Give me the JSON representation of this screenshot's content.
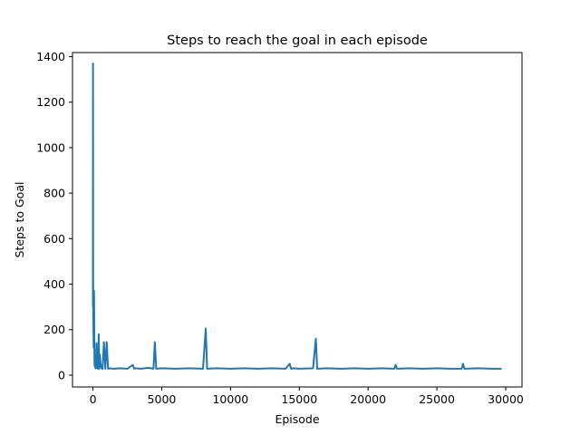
{
  "chart_data": {
    "type": "line",
    "title": "Steps to reach the goal in each episode",
    "xlabel": "Episode",
    "ylabel": "Steps to Goal",
    "xlim": [
      -1485,
      31185
    ],
    "ylim": [
      -52,
      1418
    ],
    "xticks": [
      0,
      5000,
      10000,
      15000,
      20000,
      25000,
      30000
    ],
    "xtick_labels": [
      "0",
      "5000",
      "10000",
      "15000",
      "20000",
      "25000",
      "30000"
    ],
    "yticks": [
      0,
      200,
      400,
      600,
      800,
      1000,
      1200,
      1400
    ],
    "ytick_labels": [
      "0",
      "200",
      "400",
      "600",
      "800",
      "1000",
      "1200",
      "1400"
    ],
    "grid": false,
    "series": [
      {
        "color": "#1f77b4",
        "x": [
          0,
          5,
          10,
          15,
          20,
          30,
          40,
          50,
          60,
          80,
          100,
          110,
          120,
          150,
          180,
          200,
          230,
          260,
          300,
          340,
          380,
          420,
          460,
          500,
          560,
          620,
          700,
          800,
          900,
          1000,
          1100,
          1200,
          1500,
          2000,
          2500,
          2900,
          3000,
          3100,
          3500,
          4000,
          4400,
          4500,
          4600,
          5000,
          6000,
          7000,
          8000,
          8200,
          8300,
          9000,
          10000,
          11000,
          12000,
          13000,
          14000,
          14300,
          14400,
          14600,
          15000,
          16000,
          16200,
          16300,
          17000,
          18000,
          19000,
          20000,
          21000,
          21900,
          22000,
          22100,
          23000,
          24000,
          25000,
          26000,
          26800,
          26900,
          27000,
          28000,
          29000,
          29700
        ],
        "y": [
          300,
          1370,
          900,
          450,
          300,
          250,
          200,
          130,
          120,
          370,
          180,
          70,
          40,
          90,
          30,
          60,
          35,
          140,
          30,
          60,
          28,
          180,
          28,
          90,
          50,
          30,
          28,
          145,
          28,
          145,
          28,
          30,
          28,
          30,
          28,
          45,
          28,
          30,
          28,
          32,
          28,
          145,
          28,
          30,
          28,
          30,
          28,
          205,
          28,
          30,
          28,
          30,
          28,
          30,
          28,
          50,
          28,
          30,
          28,
          30,
          160,
          28,
          30,
          28,
          30,
          28,
          30,
          28,
          45,
          28,
          30,
          28,
          30,
          28,
          28,
          50,
          28,
          30,
          28,
          28
        ]
      }
    ]
  }
}
